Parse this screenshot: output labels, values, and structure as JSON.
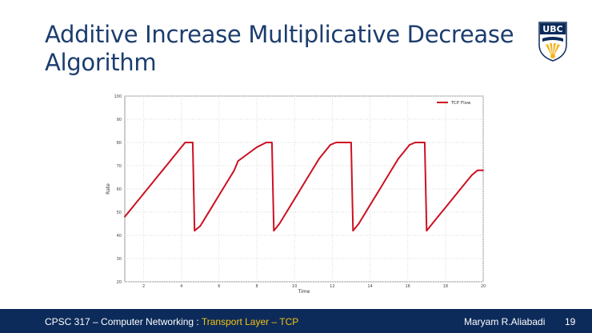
{
  "slide": {
    "title": "Additive Increase Multiplicative Decrease Algorithm",
    "logo_text": "UBC"
  },
  "footer": {
    "course": "CPSC 317 –  Computer Networking : ",
    "topic": "Transport Layer – TCP",
    "author": "Maryam R.Aliabadi",
    "page": "19"
  },
  "colors": {
    "title": "#1c3d6e",
    "footer_bg": "#0c2b5a",
    "footer_highlight": "#f5c211",
    "series": "#cc1122",
    "logo_blue": "#0c2b5a",
    "logo_gold": "#f2b51f"
  },
  "chart_data": {
    "type": "line",
    "xlabel": "Time",
    "ylabel": "Rate",
    "xlim": [
      1,
      20
    ],
    "ylim": [
      20,
      100
    ],
    "xticks": [
      2,
      4,
      6,
      8,
      10,
      12,
      14,
      16,
      18,
      20
    ],
    "yticks": [
      20,
      30,
      40,
      50,
      60,
      70,
      80,
      90,
      100
    ],
    "grid": true,
    "legend_position": "top-right",
    "series": [
      {
        "name": "TCP Flow",
        "color": "#cc1122",
        "points": [
          [
            1.0,
            48
          ],
          [
            1.2,
            50
          ],
          [
            1.4,
            52
          ],
          [
            1.6,
            54
          ],
          [
            1.8,
            56
          ],
          [
            2.0,
            58
          ],
          [
            2.2,
            60
          ],
          [
            2.4,
            62
          ],
          [
            2.6,
            64
          ],
          [
            2.8,
            66
          ],
          [
            3.0,
            68
          ],
          [
            3.2,
            70
          ],
          [
            3.4,
            72
          ],
          [
            3.6,
            74
          ],
          [
            3.8,
            76
          ],
          [
            4.0,
            78
          ],
          [
            4.2,
            80
          ],
          [
            4.6,
            80
          ],
          [
            4.7,
            42
          ],
          [
            5.0,
            44
          ],
          [
            5.3,
            48
          ],
          [
            5.6,
            52
          ],
          [
            5.9,
            56
          ],
          [
            6.2,
            60
          ],
          [
            6.5,
            64
          ],
          [
            6.8,
            68
          ],
          [
            7.0,
            72
          ],
          [
            7.5,
            75
          ],
          [
            8.0,
            78
          ],
          [
            8.5,
            80
          ],
          [
            8.8,
            80
          ],
          [
            8.9,
            42
          ],
          [
            9.2,
            45
          ],
          [
            9.5,
            49
          ],
          [
            9.8,
            53
          ],
          [
            10.1,
            57
          ],
          [
            10.4,
            61
          ],
          [
            10.7,
            65
          ],
          [
            11.0,
            69
          ],
          [
            11.3,
            73
          ],
          [
            11.6,
            76
          ],
          [
            11.9,
            79
          ],
          [
            12.2,
            80
          ],
          [
            13.0,
            80
          ],
          [
            13.1,
            42
          ],
          [
            13.4,
            45
          ],
          [
            13.7,
            49
          ],
          [
            14.0,
            53
          ],
          [
            14.3,
            57
          ],
          [
            14.6,
            61
          ],
          [
            14.9,
            65
          ],
          [
            15.2,
            69
          ],
          [
            15.5,
            73
          ],
          [
            15.8,
            76
          ],
          [
            16.1,
            79
          ],
          [
            16.4,
            80
          ],
          [
            16.9,
            80
          ],
          [
            17.0,
            42
          ],
          [
            17.3,
            45
          ],
          [
            17.6,
            48
          ],
          [
            17.9,
            51
          ],
          [
            18.2,
            54
          ],
          [
            18.5,
            57
          ],
          [
            18.8,
            60
          ],
          [
            19.1,
            63
          ],
          [
            19.4,
            66
          ],
          [
            19.7,
            68
          ],
          [
            20.0,
            68
          ]
        ]
      }
    ]
  }
}
